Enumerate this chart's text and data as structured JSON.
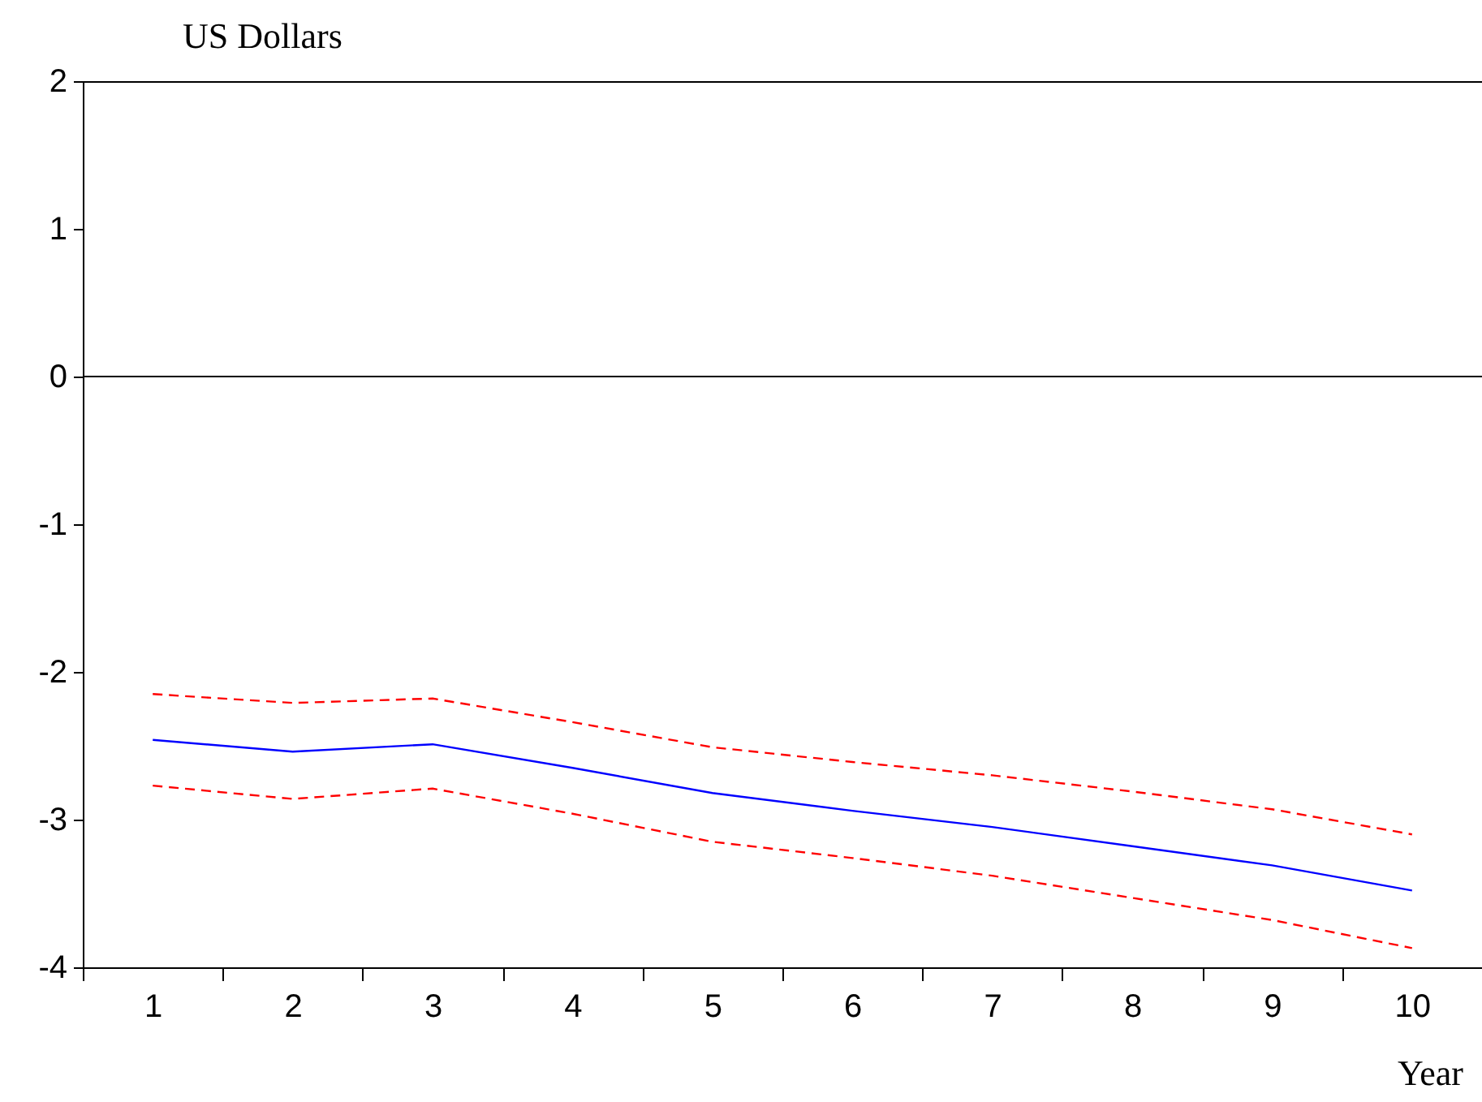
{
  "chart_data": {
    "type": "line",
    "xlabel": "Year",
    "ylabel": "US Dollars",
    "categories": [
      "1",
      "2",
      "3",
      "4",
      "5",
      "6",
      "7",
      "8",
      "9",
      "10"
    ],
    "series": [
      {
        "color": "#0000ff",
        "line_style": "solid",
        "values": [
          -2.46,
          -2.54,
          -2.49,
          -2.65,
          -2.82,
          -2.94,
          -3.05,
          -3.18,
          -3.31,
          -3.48
        ]
      },
      {
        "color": "#ff0000",
        "line_style": "dashed",
        "values": [
          -2.15,
          -2.21,
          -2.18,
          -2.34,
          -2.51,
          -2.61,
          -2.7,
          -2.81,
          -2.93,
          -3.1
        ]
      },
      {
        "color": "#ff0000",
        "line_style": "dashed",
        "values": [
          -2.77,
          -2.86,
          -2.79,
          -2.96,
          -3.15,
          -3.26,
          -3.38,
          -3.53,
          -3.68,
          -3.87
        ]
      }
    ],
    "ylim": [
      -4,
      2
    ],
    "yticks": [
      -4,
      -3,
      -2,
      -1,
      0,
      1,
      2
    ],
    "ref_lines": [
      {
        "axis": "y",
        "value": 0,
        "color": "#000000"
      }
    ],
    "grid": false
  }
}
